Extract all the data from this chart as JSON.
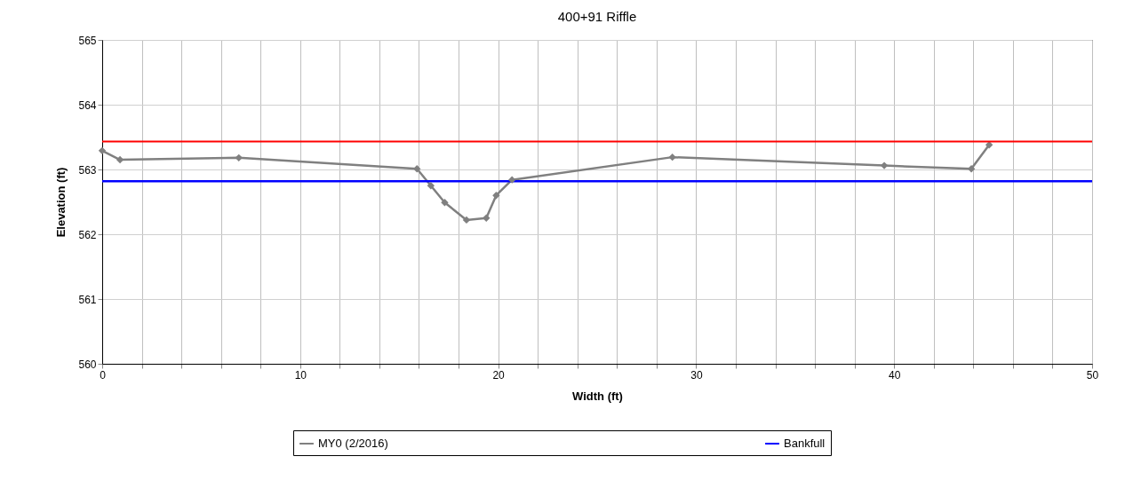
{
  "chart_data": {
    "type": "line",
    "title": "400+91 Riffle",
    "xlabel": "Width (ft)",
    "ylabel": "Elevation (ft)",
    "series": [
      {
        "name": "MY0 (2/2016)",
        "color": "#808080",
        "marker": "diamond",
        "x": [
          0,
          0.9,
          6.9,
          15.9,
          16.6,
          17.3,
          18.4,
          19.4,
          19.9,
          20.7,
          28.8,
          39.5,
          43.9,
          44.8
        ],
        "values": [
          563.29,
          563.15,
          563.18,
          563.01,
          562.75,
          562.49,
          562.22,
          562.25,
          562.6,
          562.84,
          563.19,
          563.06,
          563.01,
          563.38
        ]
      },
      {
        "name": "Bankfull",
        "color": "#0000ff",
        "marker": "none",
        "x": [
          0,
          50
        ],
        "values": [
          562.82,
          562.82
        ]
      }
    ],
    "ref_lines": [
      {
        "axis": "y",
        "value": 563.43,
        "color": "#ff0000"
      }
    ],
    "xlim": [
      0,
      50
    ],
    "xticks": [
      0,
      {
        "value": 2,
        "label": null
      },
      {
        "value": 4,
        "label": null
      },
      {
        "value": 6,
        "label": null
      },
      {
        "value": 8,
        "label": null
      },
      10,
      {
        "value": 12,
        "label": null
      },
      {
        "value": 14,
        "label": null
      },
      {
        "value": 16,
        "label": null
      },
      {
        "value": 18,
        "label": null
      },
      20,
      {
        "value": 22,
        "label": null
      },
      {
        "value": 24,
        "label": null
      },
      {
        "value": 26,
        "label": null
      },
      {
        "value": 28,
        "label": null
      },
      30,
      {
        "value": 32,
        "label": null
      },
      {
        "value": 34,
        "label": null
      },
      {
        "value": 36,
        "label": null
      },
      {
        "value": 38,
        "label": null
      },
      40,
      {
        "value": 42,
        "label": null
      },
      {
        "value": 44,
        "label": null
      },
      {
        "value": 46,
        "label": null
      },
      {
        "value": 48,
        "label": null
      },
      50
    ],
    "ylim": [
      560,
      565
    ],
    "yticks": [
      560,
      561,
      562,
      563,
      564,
      565
    ],
    "grid": true,
    "legend": "bottom",
    "line_style": "solid"
  }
}
